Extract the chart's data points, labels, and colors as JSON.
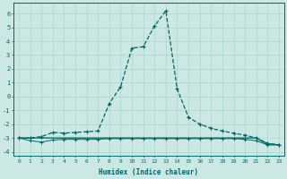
{
  "xlabel": "Humidex (Indice chaleur)",
  "bg_color": "#cce8e4",
  "line_color": "#006666",
  "grid_color": "#aad4d0",
  "xlim_min": -0.5,
  "xlim_max": 23.5,
  "ylim_min": -4.3,
  "ylim_max": 6.8,
  "xtick_labels": [
    "0",
    "1",
    "2",
    "3",
    "4",
    "5",
    "6",
    "7",
    "8",
    "9",
    "10",
    "11",
    "12",
    "13",
    "14",
    "15",
    "16",
    "17",
    "18",
    "19",
    "20",
    "21",
    "22",
    "23"
  ],
  "ytick_vals": [
    -4,
    -3,
    -2,
    -1,
    0,
    1,
    2,
    3,
    4,
    5,
    6
  ],
  "main_curve_y": [
    -3.0,
    -3.0,
    -2.9,
    -2.6,
    -2.65,
    -2.6,
    -2.55,
    -2.5,
    -0.5,
    0.7,
    3.5,
    3.6,
    5.1,
    6.2,
    0.55,
    -1.5,
    -2.0,
    -2.3,
    -2.5,
    -2.65,
    -2.8,
    -3.0,
    -3.4,
    -3.5
  ],
  "flat_curve1_y": [
    -3.0,
    -3.2,
    -3.3,
    -3.15,
    -3.1,
    -3.1,
    -3.1,
    -3.1,
    -3.05,
    -3.05,
    -3.05,
    -3.05,
    -3.05,
    -3.05,
    -3.05,
    -3.05,
    -3.05,
    -3.05,
    -3.05,
    -3.05,
    -3.1,
    -3.2,
    -3.5,
    -3.5
  ],
  "flat_curve2_y": [
    -3.0,
    -3.0,
    -3.0,
    -3.0,
    -3.0,
    -3.0,
    -3.0,
    -3.0,
    -3.0,
    -3.0,
    -3.0,
    -3.0,
    -3.0,
    -3.0,
    -3.0,
    -3.0,
    -3.0,
    -3.0,
    -3.0,
    -3.0,
    -3.0,
    -3.0,
    -3.5,
    -3.5
  ],
  "flat_curve3_y": [
    -3.0,
    -3.0,
    -3.0,
    -3.0,
    -3.0,
    -3.0,
    -3.0,
    -3.0,
    -3.0,
    -3.0,
    -3.0,
    -3.0,
    -3.0,
    -3.0,
    -3.0,
    -3.0,
    -3.0,
    -3.0,
    -3.0,
    -3.0,
    -3.0,
    -3.0,
    -3.4,
    -3.5
  ]
}
